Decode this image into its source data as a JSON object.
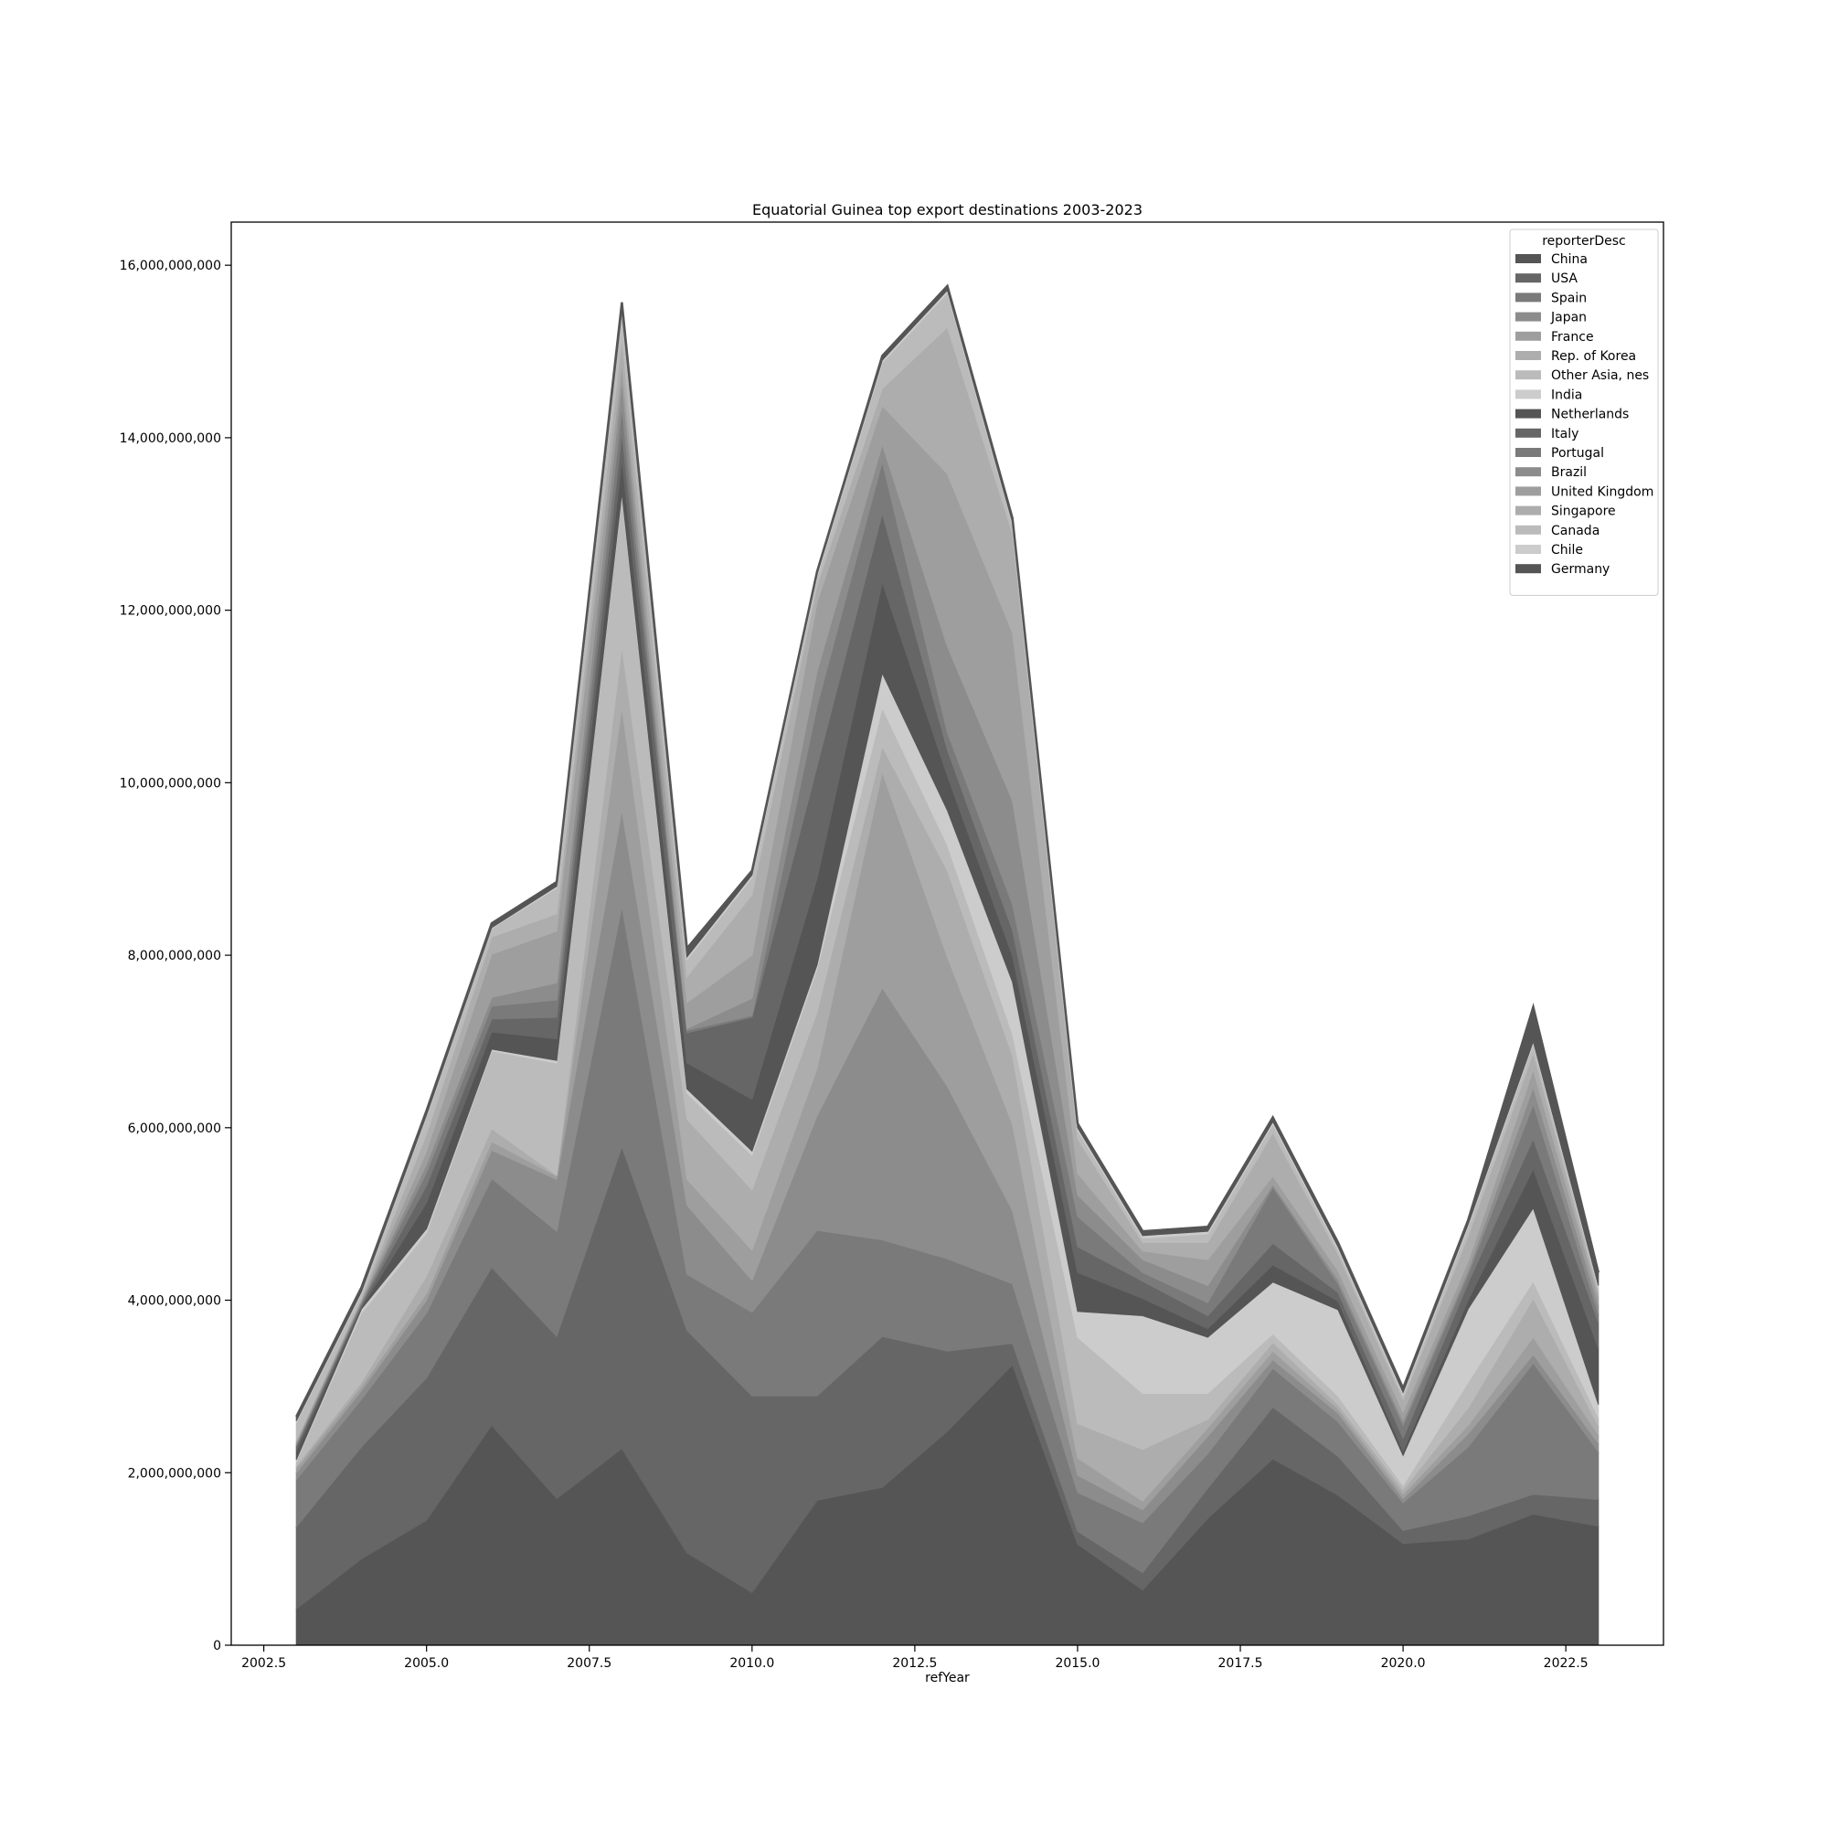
{
  "chart_data": {
    "type": "area",
    "stacked": true,
    "title": "Equatorial Guinea top export destinations 2003-2023",
    "xlabel": "refYear",
    "ylabel": "",
    "xlim": [
      2002,
      2024
    ],
    "ylim": [
      0,
      16500000000
    ],
    "xticks": [
      2002.5,
      2005.0,
      2007.5,
      2010.0,
      2012.5,
      2015.0,
      2017.5,
      2020.0,
      2022.5
    ],
    "xtick_labels": [
      "2002.5",
      "2005.0",
      "2007.5",
      "2010.0",
      "2012.5",
      "2015.0",
      "2017.5",
      "2020.0",
      "2022.5"
    ],
    "yticks": [
      0,
      2000000000,
      4000000000,
      6000000000,
      8000000000,
      10000000000,
      12000000000,
      14000000000,
      16000000000
    ],
    "ytick_labels": [
      "0",
      "2,000,000,000",
      "4,000,000,000",
      "6,000,000,000",
      "8,000,000,000",
      "10,000,000,000",
      "12,000,000,000",
      "14,000,000,000",
      "16,000,000,000"
    ],
    "grid": false,
    "legend": {
      "title": "reporterDesc",
      "position": "top-right"
    },
    "x": [
      2003,
      2004,
      2005,
      2006,
      2007,
      2008,
      2009,
      2010,
      2011,
      2012,
      2013,
      2014,
      2015,
      2016,
      2017,
      2018,
      2019,
      2020,
      2021,
      2022,
      2023
    ],
    "series": [
      {
        "name": "China",
        "color": "#555555",
        "values": [
          420000000,
          1000000000,
          1450000000,
          2550000000,
          1700000000,
          2280000000,
          1070000000,
          610000000,
          1680000000,
          1830000000,
          2480000000,
          3250000000,
          1170000000,
          640000000,
          1470000000,
          2160000000,
          1740000000,
          1180000000,
          1230000000,
          1520000000,
          1380000000
        ]
      },
      {
        "name": "USA",
        "color": "#666666",
        "values": [
          950000000,
          1300000000,
          1650000000,
          1830000000,
          1880000000,
          3500000000,
          2580000000,
          2280000000,
          1210000000,
          1750000000,
          930000000,
          250000000,
          150000000,
          200000000,
          350000000,
          600000000,
          450000000,
          150000000,
          270000000,
          230000000,
          310000000
        ]
      },
      {
        "name": "Spain",
        "color": "#7a7a7a",
        "values": [
          550000000,
          550000000,
          750000000,
          1030000000,
          1220000000,
          2780000000,
          650000000,
          970000000,
          1920000000,
          1120000000,
          1070000000,
          690000000,
          450000000,
          580000000,
          400000000,
          450000000,
          400000000,
          320000000,
          800000000,
          1520000000,
          550000000
        ]
      },
      {
        "name": "Japan",
        "color": "#8c8c8c",
        "values": [
          80000000,
          100000000,
          150000000,
          330000000,
          600000000,
          1120000000,
          800000000,
          370000000,
          1330000000,
          2920000000,
          2000000000,
          850000000,
          200000000,
          150000000,
          200000000,
          100000000,
          100000000,
          50000000,
          150000000,
          100000000,
          100000000
        ]
      },
      {
        "name": "France",
        "color": "#9e9e9e",
        "values": [
          50000000,
          50000000,
          80000000,
          100000000,
          40000000,
          1200000000,
          300000000,
          350000000,
          550000000,
          2500000000,
          1500000000,
          1000000000,
          200000000,
          100000000,
          100000000,
          100000000,
          50000000,
          50000000,
          100000000,
          200000000,
          100000000
        ]
      },
      {
        "name": "Rep. of Korea",
        "color": "#adadad",
        "values": [
          30000000,
          50000000,
          200000000,
          150000000,
          10000000,
          700000000,
          700000000,
          700000000,
          650000000,
          300000000,
          1000000000,
          800000000,
          400000000,
          600000000,
          100000000,
          100000000,
          50000000,
          50000000,
          200000000,
          450000000,
          100000000
        ]
      },
      {
        "name": "Other Asia, nes",
        "color": "#bbbbbb",
        "values": [
          50000000,
          800000000,
          500000000,
          900000000,
          1300000000,
          1750000000,
          300000000,
          400000000,
          500000000,
          450000000,
          300000000,
          250000000,
          1000000000,
          650000000,
          300000000,
          100000000,
          100000000,
          50000000,
          300000000,
          200000000,
          100000000
        ]
      },
      {
        "name": "India",
        "color": "#cccccc",
        "values": [
          20000000,
          50000000,
          50000000,
          20000000,
          30000000,
          30000000,
          50000000,
          50000000,
          50000000,
          400000000,
          400000000,
          600000000,
          300000000,
          900000000,
          650000000,
          600000000,
          1000000000,
          350000000,
          850000000,
          850000000,
          150000000
        ]
      },
      {
        "name": "Netherlands",
        "color": "#555555",
        "values": [
          100000000,
          20000000,
          300000000,
          200000000,
          250000000,
          400000000,
          300000000,
          600000000,
          1000000000,
          1050000000,
          400000000,
          300000000,
          450000000,
          200000000,
          100000000,
          200000000,
          100000000,
          50000000,
          100000000,
          450000000,
          650000000
        ]
      },
      {
        "name": "Italy",
        "color": "#666666",
        "values": [
          50000000,
          30000000,
          200000000,
          150000000,
          250000000,
          300000000,
          350000000,
          950000000,
          1300000000,
          800000000,
          300000000,
          300000000,
          300000000,
          200000000,
          150000000,
          250000000,
          100000000,
          150000000,
          200000000,
          350000000,
          300000000
        ]
      },
      {
        "name": "Portugal",
        "color": "#7a7a7a",
        "values": [
          20000000,
          20000000,
          150000000,
          150000000,
          200000000,
          300000000,
          30000000,
          20000000,
          700000000,
          600000000,
          200000000,
          300000000,
          350000000,
          100000000,
          150000000,
          650000000,
          100000000,
          150000000,
          100000000,
          400000000,
          100000000
        ]
      },
      {
        "name": "Brazil",
        "color": "#8c8c8c",
        "values": [
          20000000,
          20000000,
          100000000,
          100000000,
          200000000,
          300000000,
          20000000,
          200000000,
          400000000,
          200000000,
          1000000000,
          1200000000,
          250000000,
          150000000,
          200000000,
          30000000,
          50000000,
          50000000,
          50000000,
          200000000,
          100000000
        ]
      },
      {
        "name": "United Kingdom",
        "color": "#9e9e9e",
        "values": [
          20000000,
          20000000,
          150000000,
          500000000,
          600000000,
          200000000,
          300000000,
          500000000,
          800000000,
          450000000,
          2000000000,
          1950000000,
          250000000,
          100000000,
          300000000,
          100000000,
          100000000,
          100000000,
          100000000,
          200000000,
          100000000
        ]
      },
      {
        "name": "Singapore",
        "color": "#adadad",
        "values": [
          20000000,
          20000000,
          200000000,
          200000000,
          200000000,
          300000000,
          300000000,
          700000000,
          200000000,
          200000000,
          1700000000,
          1150000000,
          400000000,
          100000000,
          200000000,
          500000000,
          200000000,
          150000000,
          300000000,
          200000000,
          50000000
        ]
      },
      {
        "name": "Canada",
        "color": "#bbbbbb",
        "values": [
          200000000,
          50000000,
          200000000,
          100000000,
          300000000,
          300000000,
          200000000,
          200000000,
          100000000,
          300000000,
          400000000,
          100000000,
          100000000,
          50000000,
          100000000,
          100000000,
          50000000,
          50000000,
          100000000,
          100000000,
          50000000
        ]
      },
      {
        "name": "Chile",
        "color": "#cccccc",
        "values": [
          20000000,
          20000000,
          20000000,
          10000000,
          20000000,
          10000000,
          30000000,
          30000000,
          30000000,
          30000000,
          30000000,
          30000000,
          30000000,
          30000000,
          30000000,
          30000000,
          30000000,
          30000000,
          30000000,
          30000000,
          30000000
        ]
      },
      {
        "name": "Germany",
        "color": "#555555",
        "values": [
          50000000,
          50000000,
          50000000,
          50000000,
          50000000,
          100000000,
          100000000,
          50000000,
          30000000,
          50000000,
          50000000,
          50000000,
          50000000,
          50000000,
          50000000,
          50000000,
          50000000,
          50000000,
          50000000,
          400000000,
          150000000
        ]
      }
    ]
  }
}
